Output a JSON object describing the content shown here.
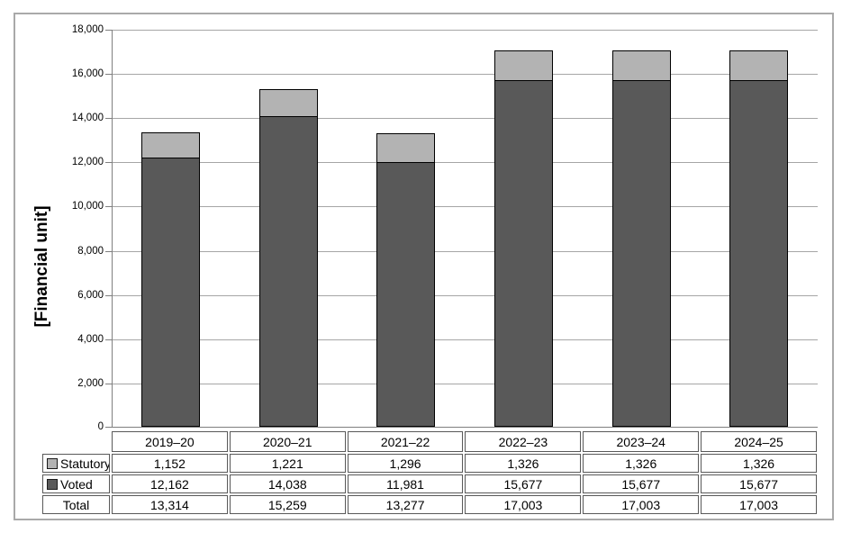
{
  "frame": {
    "background": "#ffffff",
    "border_color": "#a9a9a9"
  },
  "chart_data": {
    "type": "bar",
    "stacked": true,
    "title": "",
    "ylabel": "[Financial unit]",
    "xlabel": "",
    "categories": [
      "2019–20",
      "2020–21",
      "2021–22",
      "2022–23",
      "2023–24",
      "2024–25"
    ],
    "series": [
      {
        "name": "Statutory",
        "color": "#b3b3b3",
        "values": [
          1152,
          1221,
          1296,
          1326,
          1326,
          1326
        ]
      },
      {
        "name": "Voted",
        "color": "#595959",
        "values": [
          12162,
          14038,
          11981,
          15677,
          15677,
          15677
        ]
      }
    ],
    "totals": {
      "label": "Total",
      "values": [
        13314,
        15259,
        13277,
        17003,
        17003,
        17003
      ]
    },
    "ylim": [
      0,
      18000
    ],
    "ytick_step": 2000,
    "grid": true,
    "gridline_color": "#a6a6a6",
    "axis_color": "#7f7f7f",
    "bar_border_color": "#000000",
    "table_border_color": "#595959",
    "legend_position": "table-left",
    "data_table_shown": true
  }
}
